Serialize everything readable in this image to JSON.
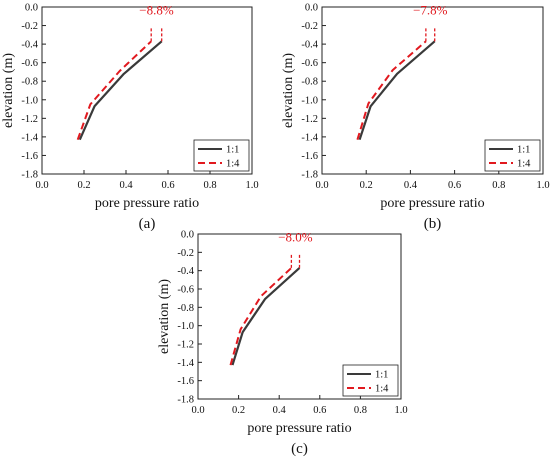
{
  "chart_data": [
    {
      "type": "line",
      "caption": "(a)",
      "xlabel": "pore pressure ratio",
      "ylabel": "elevation (m)",
      "xlim": [
        0.0,
        1.0
      ],
      "ylim": [
        -1.8,
        0.0
      ],
      "xticks": [
        "0.0",
        "0.2",
        "0.4",
        "0.6",
        "0.8",
        "1.0"
      ],
      "yticks": [
        "0.0",
        "-0.2",
        "-0.4",
        "-0.6",
        "-0.8",
        "-1.0",
        "-1.2",
        "-1.4",
        "-1.6",
        "-1.8"
      ],
      "legend_position": "bottom-right",
      "annotation": "−8.8%",
      "series": [
        {
          "name": "1:1",
          "color": "#3a3a3a",
          "style": "solid",
          "x": [
            0.18,
            0.25,
            0.39,
            0.57
          ],
          "y": [
            -1.43,
            -1.07,
            -0.72,
            -0.37
          ]
        },
        {
          "name": "1:4",
          "color": "#e1191f",
          "style": "dashed",
          "x": [
            0.17,
            0.23,
            0.37,
            0.52
          ],
          "y": [
            -1.43,
            -1.05,
            -0.69,
            -0.37
          ]
        }
      ]
    },
    {
      "type": "line",
      "caption": "(b)",
      "xlabel": "pore pressure ratio",
      "ylabel": "elevation (m)",
      "xlim": [
        0.0,
        1.0
      ],
      "ylim": [
        -1.8,
        0.0
      ],
      "xticks": [
        "0.0",
        "0.2",
        "0.4",
        "0.6",
        "0.8",
        "1.0"
      ],
      "yticks": [
        "0.0",
        "-0.2",
        "-0.4",
        "-0.6",
        "-0.8",
        "-1.0",
        "-1.2",
        "-1.4",
        "-1.6",
        "-1.8"
      ],
      "legend_position": "bottom-right",
      "annotation": "−7.8%",
      "series": [
        {
          "name": "1:1",
          "color": "#3a3a3a",
          "style": "solid",
          "x": [
            0.17,
            0.22,
            0.34,
            0.51
          ],
          "y": [
            -1.43,
            -1.07,
            -0.72,
            -0.37
          ]
        },
        {
          "name": "1:4",
          "color": "#e1191f",
          "style": "dashed",
          "x": [
            0.16,
            0.21,
            0.32,
            0.47
          ],
          "y": [
            -1.43,
            -1.04,
            -0.68,
            -0.37
          ]
        }
      ]
    },
    {
      "type": "line",
      "caption": "(c)",
      "xlabel": "pore pressure ratio",
      "ylabel": "elevation (m)",
      "xlim": [
        0.0,
        1.0
      ],
      "ylim": [
        -1.8,
        0.0
      ],
      "xticks": [
        "0.0",
        "0.2",
        "0.4",
        "0.6",
        "0.8",
        "1.0"
      ],
      "yticks": [
        "0.0",
        "-0.2",
        "-0.4",
        "-0.6",
        "-0.8",
        "-1.0",
        "-1.2",
        "-1.4",
        "-1.6",
        "-1.8"
      ],
      "legend_position": "bottom-right",
      "annotation": "−8.0%",
      "series": [
        {
          "name": "1:1",
          "color": "#3a3a3a",
          "style": "solid",
          "x": [
            0.17,
            0.22,
            0.33,
            0.5
          ],
          "y": [
            -1.43,
            -1.07,
            -0.71,
            -0.37
          ]
        },
        {
          "name": "1:4",
          "color": "#e1191f",
          "style": "dashed",
          "x": [
            0.16,
            0.21,
            0.31,
            0.46
          ],
          "y": [
            -1.43,
            -1.04,
            -0.68,
            -0.37
          ]
        }
      ]
    }
  ]
}
